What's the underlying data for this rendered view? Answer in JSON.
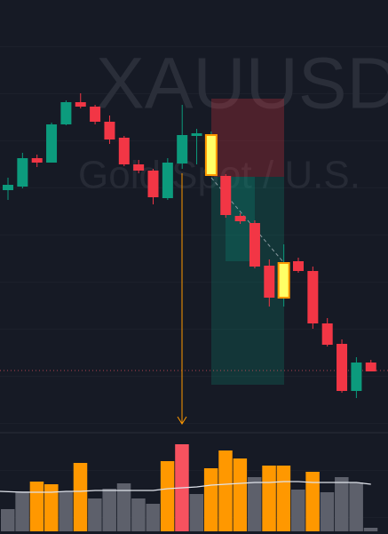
{
  "chart_data": {
    "type": "candlestick",
    "title": "XAUUSD",
    "subtitle": "Gold Spot / U.S.",
    "candles": [
      {
        "open": 286,
        "high": 300,
        "low": 275,
        "close": 292
      },
      {
        "open": 290,
        "high": 328,
        "low": 288,
        "close": 322
      },
      {
        "open": 322,
        "high": 326,
        "low": 312,
        "close": 317
      },
      {
        "open": 317,
        "high": 362,
        "low": 317,
        "close": 360
      },
      {
        "open": 360,
        "high": 387,
        "low": 359,
        "close": 385
      },
      {
        "open": 385,
        "high": 395,
        "low": 378,
        "close": 380
      },
      {
        "open": 380,
        "high": 382,
        "low": 360,
        "close": 363
      },
      {
        "open": 363,
        "high": 370,
        "low": 338,
        "close": 343
      },
      {
        "open": 345,
        "high": 347,
        "low": 313,
        "close": 315
      },
      {
        "open": 315,
        "high": 320,
        "low": 305,
        "close": 308
      },
      {
        "open": 308,
        "high": 310,
        "low": 270,
        "close": 278
      },
      {
        "open": 277,
        "high": 322,
        "low": 275,
        "close": 317
      },
      {
        "open": 316,
        "high": 382,
        "low": 310,
        "close": 348
      },
      {
        "open": 347,
        "high": 355,
        "low": 315,
        "close": 350
      },
      {
        "open": 303,
        "high": 352,
        "low": 302,
        "close": 348
      },
      {
        "open": 302,
        "high": 304,
        "low": 255,
        "close": 258
      },
      {
        "open": 257,
        "high": 260,
        "low": 248,
        "close": 251
      },
      {
        "open": 249,
        "high": 252,
        "low": 198,
        "close": 200
      },
      {
        "open": 201,
        "high": 208,
        "low": 155,
        "close": 165
      },
      {
        "open": 165,
        "high": 225,
        "low": 155,
        "close": 204
      },
      {
        "open": 206,
        "high": 210,
        "low": 193,
        "close": 195
      },
      {
        "open": 195,
        "high": 200,
        "low": 130,
        "close": 136
      },
      {
        "open": 136,
        "high": 142,
        "low": 110,
        "close": 112
      },
      {
        "open": 113,
        "high": 118,
        "low": 58,
        "close": 60
      },
      {
        "open": 60,
        "high": 98,
        "low": 52,
        "close": 92
      },
      {
        "open": 92,
        "high": 95,
        "low": 82,
        "close": 82
      }
    ],
    "colors": [
      "#0c9b7d",
      "#0c9b7d",
      "#f23645",
      "#0c9b7d",
      "#0c9b7d",
      "#f23645",
      "#f23645",
      "#f23645",
      "#f23645",
      "#f23645",
      "#f23645",
      "#0c9b7d",
      "#0c9b7d",
      "#0c9b7d",
      "#ffff66",
      "#f23645",
      "#f23645",
      "#f23645",
      "#f23645",
      "#ffff66",
      "#f23645",
      "#f23645",
      "#f23645",
      "#f23645",
      "#0c9b7d",
      "#f23645"
    ],
    "ylim": [
      30,
      500
    ],
    "volume": [
      25,
      45,
      56,
      53,
      45,
      77,
      37,
      48,
      54,
      37,
      31,
      79,
      98,
      42,
      71,
      91,
      82,
      61,
      74,
      74,
      47,
      67,
      44,
      61,
      55,
      4
    ],
    "volume_colors": [
      "#5d606b",
      "#5d606b",
      "#ff9800",
      "#ff9800",
      "#5d606b",
      "#ff9800",
      "#5d606b",
      "#5d606b",
      "#5d606b",
      "#5d606b",
      "#5d606b",
      "#ff9800",
      "#f7525f",
      "#5d606b",
      "#ff9800",
      "#ff9800",
      "#ff9800",
      "#5d606b",
      "#ff9800",
      "#ff9800",
      "#5d606b",
      "#ff9800",
      "#5d606b",
      "#5d606b",
      "#5d606b",
      "#5d606b"
    ],
    "volume_ma": [
      45,
      44,
      44,
      44,
      45,
      45,
      46,
      46,
      46,
      46,
      46,
      48,
      49,
      50,
      52,
      53,
      54,
      55,
      55,
      56,
      56,
      55,
      55,
      55,
      55,
      53
    ],
    "volume_ylim": [
      0,
      110
    ]
  }
}
